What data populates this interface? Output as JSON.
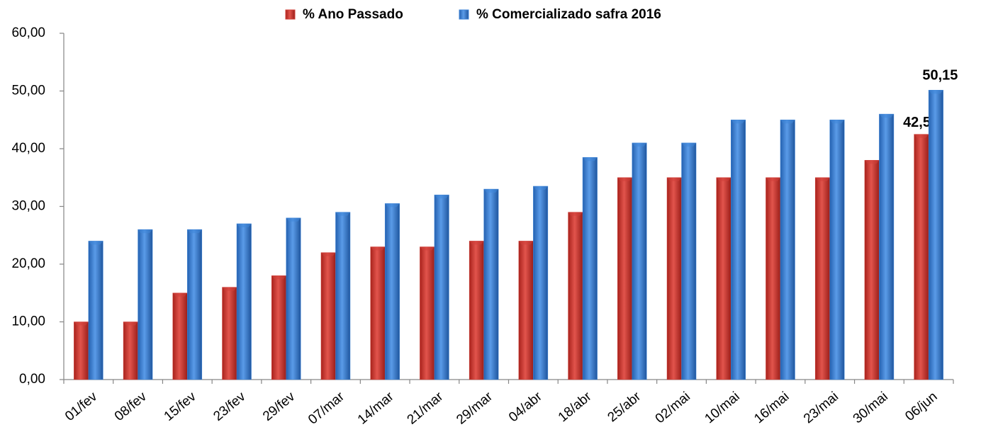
{
  "chart_data": {
    "type": "bar",
    "categories": [
      "01/fev",
      "08/fev",
      "15/fev",
      "23/fev",
      "29/fev",
      "07/mar",
      "14/mar",
      "21/mar",
      "29/mar",
      "04/abr",
      "18/abr",
      "25/abr",
      "02/mai",
      "10/mai",
      "16/mai",
      "23/mai",
      "30/mai",
      "06/jun"
    ],
    "series": [
      {
        "name": "% Ano Passado",
        "color": "#d0403a",
        "values": [
          10,
          10,
          15,
          16,
          18,
          22,
          23,
          23,
          24,
          24,
          29,
          35,
          35,
          35,
          35,
          35,
          38,
          42.5
        ],
        "value_labels": [
          null,
          null,
          null,
          null,
          null,
          null,
          null,
          null,
          null,
          null,
          null,
          null,
          null,
          null,
          null,
          null,
          null,
          "42,50"
        ]
      },
      {
        "name": "% Comercializado safra 2016",
        "color": "#3f86d8",
        "values": [
          24,
          26,
          26,
          27,
          28,
          29,
          30.5,
          32,
          33,
          33.5,
          38.5,
          41,
          41,
          45,
          45,
          45,
          46,
          50.15
        ],
        "value_labels": [
          null,
          null,
          null,
          null,
          null,
          null,
          null,
          null,
          null,
          null,
          null,
          null,
          null,
          null,
          null,
          null,
          null,
          "50,15"
        ]
      }
    ],
    "ylim": [
      0,
      60
    ],
    "yticks": [
      {
        "value": 0,
        "label": "0,00"
      },
      {
        "value": 10,
        "label": "10,00"
      },
      {
        "value": 20,
        "label": "20,00"
      },
      {
        "value": 30,
        "label": "30,00"
      },
      {
        "value": 40,
        "label": "40,00"
      },
      {
        "value": 50,
        "label": "50,00"
      },
      {
        "value": 60,
        "label": "60,00"
      }
    ],
    "legend": "top"
  }
}
